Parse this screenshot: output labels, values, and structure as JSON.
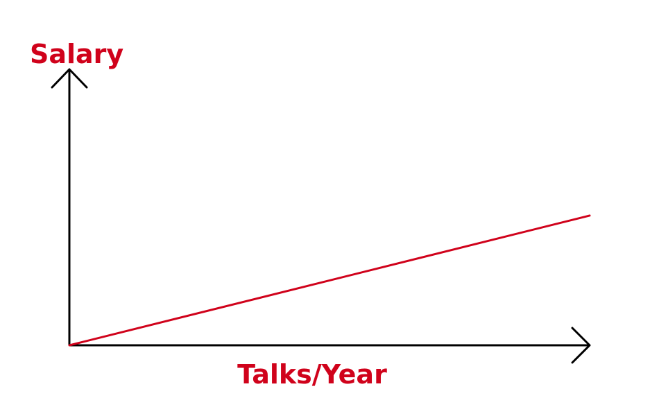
{
  "chart_data": {
    "type": "line",
    "xlabel": "Talks/Year",
    "ylabel": "Salary",
    "grid": false,
    "ticks": false,
    "xlim": [
      0,
      1
    ],
    "ylim": [
      0,
      1
    ],
    "series": [
      {
        "x": [
          0,
          1
        ],
        "y": [
          0,
          0.47
        ]
      }
    ]
  },
  "colors": {
    "axis": "#000000",
    "line": "#d0021b",
    "label": "#d0021b"
  }
}
